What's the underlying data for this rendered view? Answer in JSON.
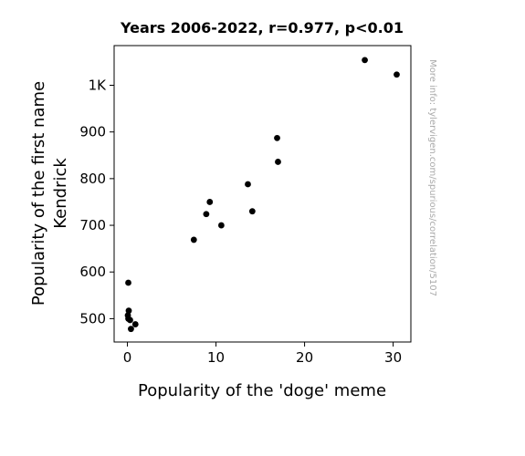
{
  "chart_data": {
    "type": "scatter",
    "title": "Years 2006-2022, r=0.977, p<0.01",
    "xlabel": "Popularity of the 'doge' meme",
    "ylabel_lines": [
      "Popularity of the first name",
      "Kendrick"
    ],
    "xlim": [
      -1.5,
      32
    ],
    "ylim": [
      450,
      1085
    ],
    "x_ticks": [
      {
        "value": 0,
        "label": "0"
      },
      {
        "value": 10,
        "label": "10"
      },
      {
        "value": 20,
        "label": "20"
      },
      {
        "value": 30,
        "label": "30"
      }
    ],
    "y_ticks": [
      {
        "value": 500,
        "label": "500"
      },
      {
        "value": 600,
        "label": "600"
      },
      {
        "value": 700,
        "label": "700"
      },
      {
        "value": 800,
        "label": "800"
      },
      {
        "value": 900,
        "label": "900"
      },
      {
        "value": 1000,
        "label": "1K"
      }
    ],
    "grid": false,
    "marker_color": "#000000",
    "points": [
      {
        "x": 0.1,
        "y": 577
      },
      {
        "x": 0.15,
        "y": 517
      },
      {
        "x": 0.05,
        "y": 507
      },
      {
        "x": 0.1,
        "y": 500
      },
      {
        "x": 0.3,
        "y": 497
      },
      {
        "x": 0.9,
        "y": 488
      },
      {
        "x": 0.4,
        "y": 478
      },
      {
        "x": 7.5,
        "y": 669
      },
      {
        "x": 8.9,
        "y": 724
      },
      {
        "x": 9.3,
        "y": 750
      },
      {
        "x": 10.6,
        "y": 700
      },
      {
        "x": 13.6,
        "y": 788
      },
      {
        "x": 14.1,
        "y": 730
      },
      {
        "x": 16.9,
        "y": 887
      },
      {
        "x": 17.0,
        "y": 836
      },
      {
        "x": 26.8,
        "y": 1054
      },
      {
        "x": 30.4,
        "y": 1023
      }
    ]
  },
  "watermark": "More info: tylervigen.com/spurious/correlation/5107"
}
